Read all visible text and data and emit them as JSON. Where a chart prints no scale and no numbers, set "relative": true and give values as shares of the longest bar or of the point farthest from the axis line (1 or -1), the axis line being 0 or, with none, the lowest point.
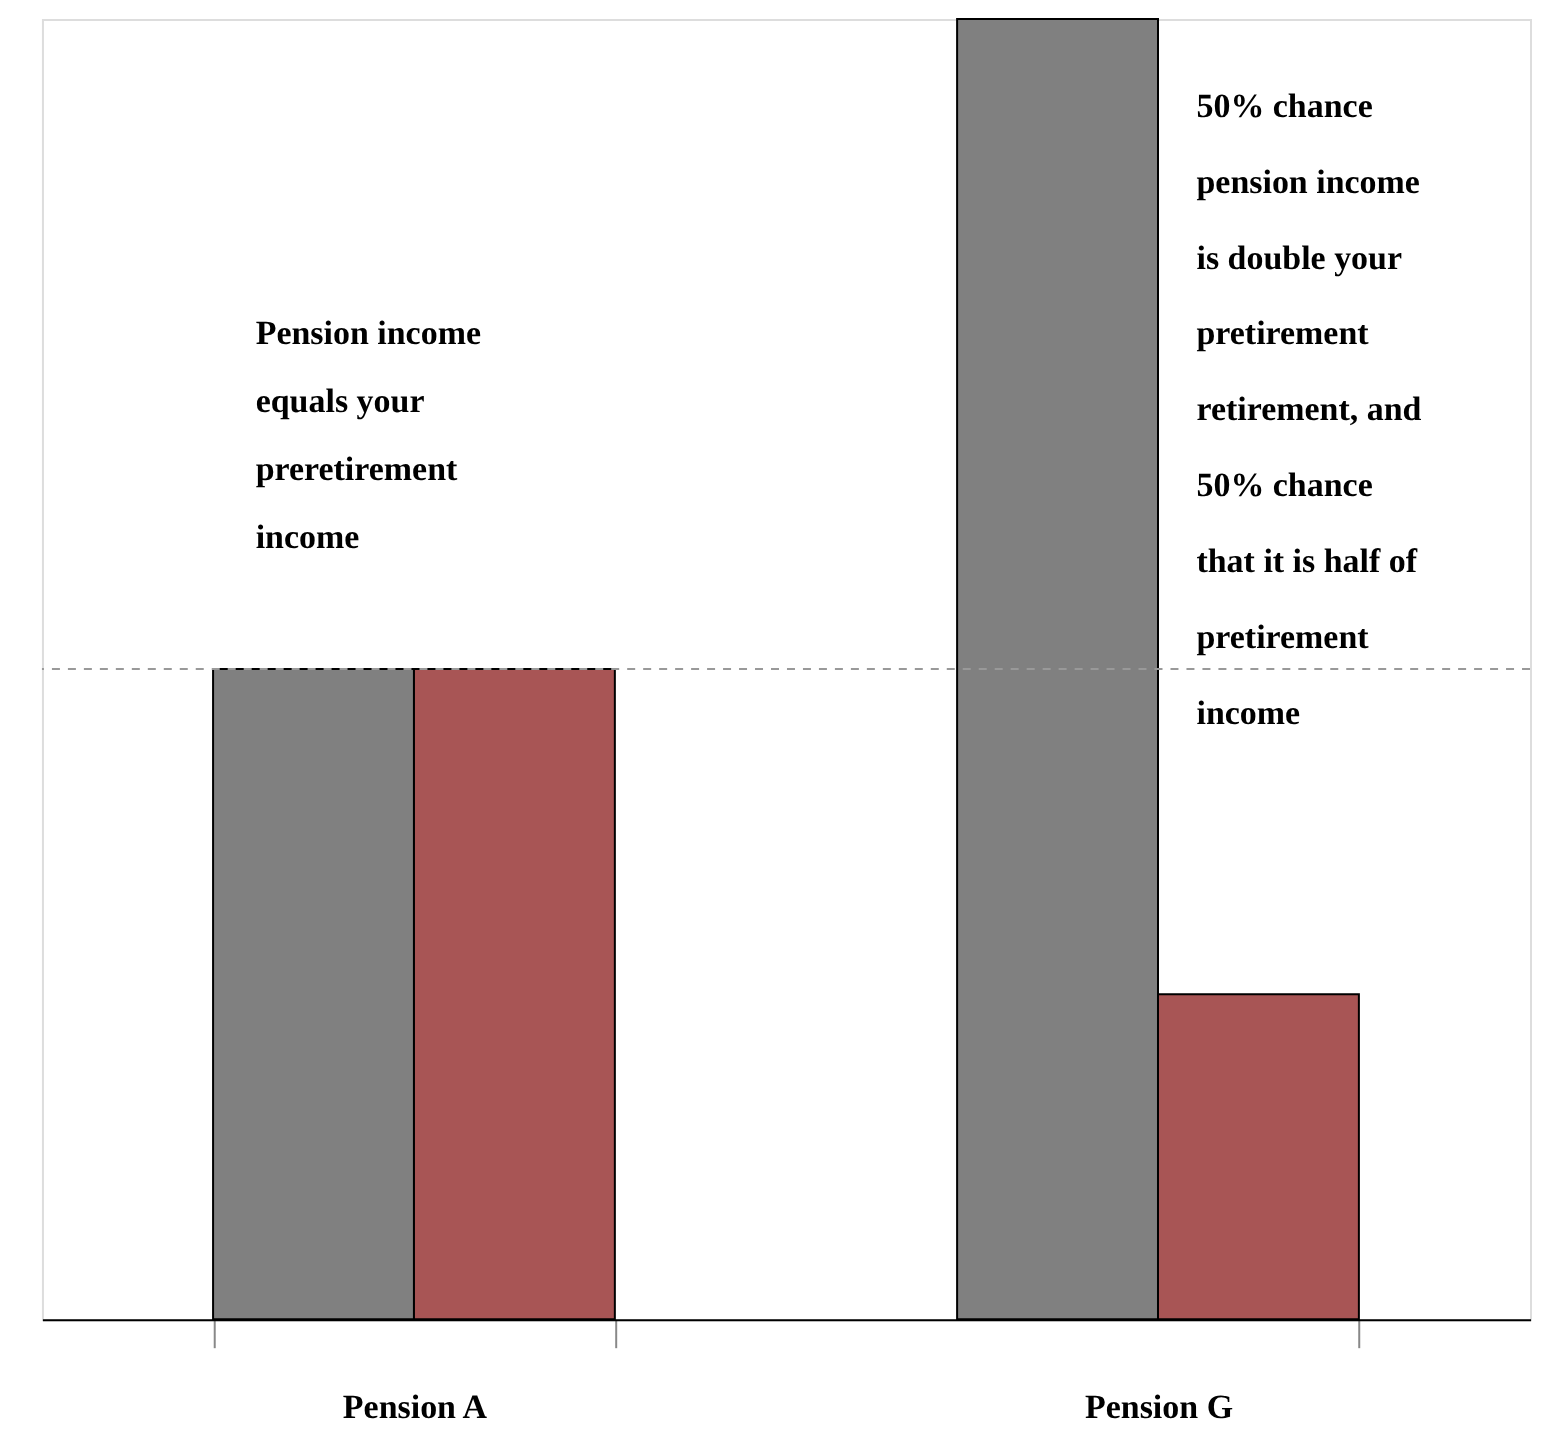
{
  "chart_data": {
    "type": "bar",
    "relative": true,
    "categories": [
      "Pension A",
      "Pension G"
    ],
    "series": [
      {
        "color": "#808080",
        "values": [
          0.5,
          1
        ]
      },
      {
        "color": "#a85555",
        "values": [
          0.5,
          0.25
        ]
      }
    ],
    "ref_lines": [
      {
        "axis": "y",
        "value": 0.5,
        "color": "#999999",
        "line_style": "dashed"
      }
    ],
    "annotations": [
      "Pension income\nequals your\npreretirement\nincome",
      "50% chance\npension income\nis double your\npretirement\nretirement, and\n50% chance\nthat it is half of\npretirement\nincome"
    ],
    "grid": false
  }
}
